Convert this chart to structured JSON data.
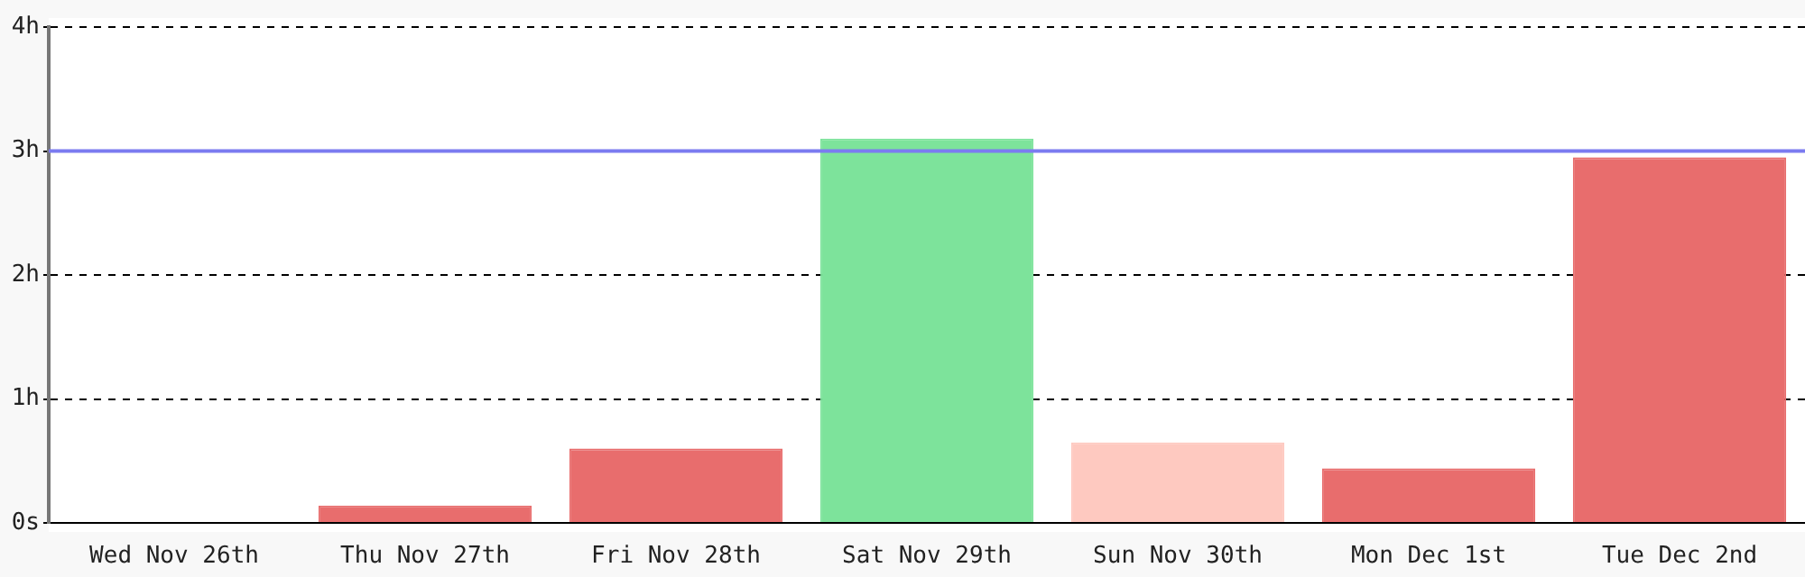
{
  "chart_data": {
    "type": "bar",
    "categories": [
      "Wed Nov 26th",
      "Thu Nov 27th",
      "Fri Nov 28th",
      "Sat Nov 29th",
      "Sun Nov 30th",
      "Mon Dec 1st",
      "Tue Dec 2nd"
    ],
    "values": [
      0,
      0.14,
      0.6,
      3.1,
      0.65,
      0.44,
      2.95
    ],
    "colors": [
      "#e86d6d",
      "#e86d6d",
      "#e86d6d",
      "#7de39b",
      "#fec9c0",
      "#e86d6d",
      "#e86d6d"
    ],
    "ylim": [
      0,
      4
    ],
    "yticks": [
      {
        "value": 0,
        "label": "0s"
      },
      {
        "value": 1,
        "label": "1h"
      },
      {
        "value": 2,
        "label": "2h"
      },
      {
        "value": 3,
        "label": "3h"
      },
      {
        "value": 4,
        "label": "4h"
      }
    ],
    "grid": "y",
    "legend": false,
    "ref_lines": [
      {
        "axis": "y",
        "value": 3,
        "color": "#7b7bf0"
      }
    ]
  }
}
